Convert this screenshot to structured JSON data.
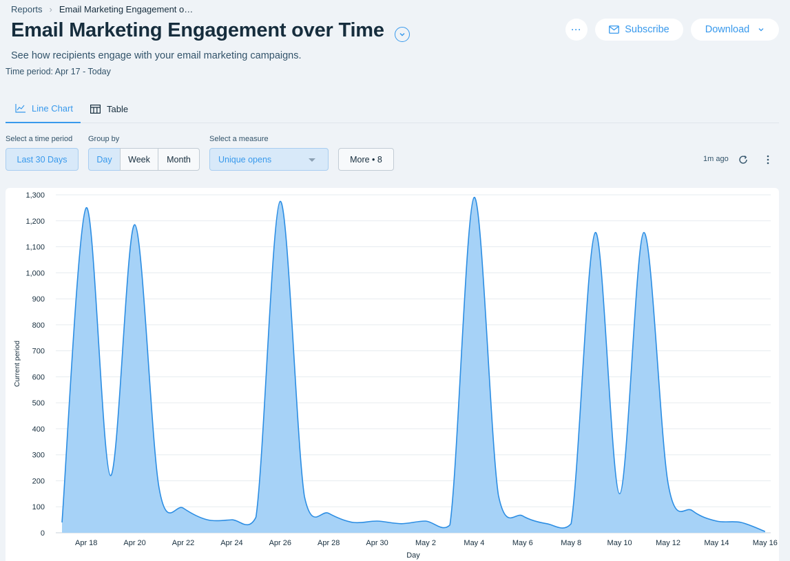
{
  "breadcrumb": {
    "root": "Reports",
    "current": "Email Marketing Engagement o…"
  },
  "header": {
    "title": "Email Marketing Engagement over Time",
    "subtitle": "See how recipients engage with your email marketing campaigns.",
    "time_period": "Time period: Apr 17 - Today",
    "subscribe_label": "Subscribe",
    "download_label": "Download",
    "more_label": "···"
  },
  "tabs": [
    {
      "label": "Line Chart"
    },
    {
      "label": "Table"
    }
  ],
  "controls": {
    "time_label": "Select a time period",
    "time_value": "Last 30 Days",
    "group_label": "Group by",
    "group_options": [
      "Day",
      "Week",
      "Month"
    ],
    "group_selected": "Day",
    "measure_label": "Select a measure",
    "measure_value": "Unique opens",
    "more_filters": "More • 8",
    "updated": "1m ago"
  },
  "colors": {
    "accent": "#3899ec",
    "fill": "#a6d2f7",
    "stroke": "#2b8de3"
  },
  "icons": {
    "subscribe": "envelope-icon",
    "download": "chevron-down-icon",
    "refresh": "refresh-icon",
    "line_tab": "line-chart-icon",
    "table_tab": "table-icon"
  },
  "chart_data": {
    "type": "area",
    "xlabel": "Day",
    "ylabel": "Current period",
    "ylim": [
      0,
      1300
    ],
    "yticks": [
      0,
      100,
      200,
      300,
      400,
      500,
      600,
      700,
      800,
      900,
      1000,
      1100,
      1200,
      1300
    ],
    "x": [
      "Apr 17",
      "Apr 18",
      "Apr 19",
      "Apr 20",
      "Apr 21",
      "Apr 22",
      "Apr 23",
      "Apr 24",
      "Apr 25",
      "Apr 26",
      "Apr 27",
      "Apr 28",
      "Apr 29",
      "Apr 30",
      "May 1",
      "May 2",
      "May 3",
      "May 4",
      "May 5",
      "May 6",
      "May 7",
      "May 8",
      "May 9",
      "May 10",
      "May 11",
      "May 12",
      "May 13",
      "May 14",
      "May 15",
      "May 16"
    ],
    "xtick_labels": [
      "Apr 18",
      "Apr 20",
      "Apr 22",
      "Apr 24",
      "Apr 26",
      "Apr 28",
      "Apr 30",
      "May 2",
      "May 4",
      "May 6",
      "May 8",
      "May 10",
      "May 12",
      "May 14",
      "May 16"
    ],
    "series": [
      {
        "values": [
          40,
          1250,
          220,
          1185,
          175,
          95,
          50,
          50,
          60,
          1275,
          140,
          75,
          40,
          45,
          35,
          45,
          30,
          1290,
          145,
          65,
          35,
          35,
          1155,
          150,
          1155,
          190,
          85,
          45,
          40,
          5
        ]
      }
    ],
    "grid": true,
    "legend": "none"
  }
}
